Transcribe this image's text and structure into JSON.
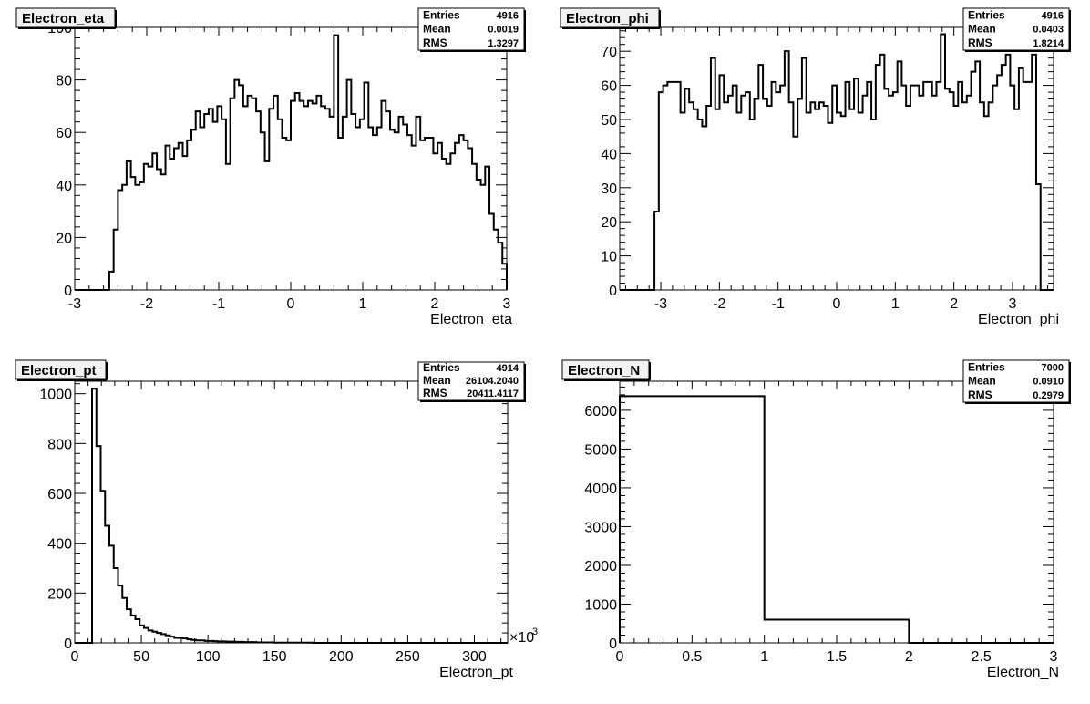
{
  "chart_data": [
    {
      "type": "histogram",
      "title": "Electron_eta",
      "xlabel": "Electron_eta",
      "ylabel": "",
      "xlim": [
        -3,
        3
      ],
      "ylim": [
        0,
        100
      ],
      "xticks": [
        -3,
        -2,
        -1,
        0,
        1,
        2,
        3
      ],
      "yticks": [
        0,
        20,
        40,
        60,
        80,
        100
      ],
      "xtick_labels": [
        "-3",
        "-2",
        "-1",
        "0",
        "1",
        "2",
        "3"
      ],
      "ytick_labels": [
        "0",
        "20",
        "40",
        "60",
        "80",
        "100"
      ],
      "bins": {
        "n": 100,
        "min": -3,
        "max": 3
      },
      "values": [
        0,
        0,
        0,
        0,
        0,
        0,
        0,
        0,
        7,
        23,
        38,
        40,
        49,
        43,
        40,
        41,
        48,
        47,
        52,
        46,
        44,
        55,
        50,
        54,
        56,
        51,
        57,
        61,
        68,
        62,
        67,
        69,
        64,
        70,
        65,
        48,
        73,
        80,
        78,
        70,
        74,
        73,
        68,
        60,
        49,
        69,
        74,
        65,
        58,
        57,
        72,
        75,
        72,
        70,
        72,
        71,
        74,
        70,
        69,
        66,
        97,
        58,
        66,
        80,
        67,
        62,
        65,
        79,
        62,
        59,
        62,
        72,
        68,
        61,
        60,
        66,
        63,
        59,
        55,
        66,
        57,
        58,
        58,
        52,
        56,
        50,
        48,
        52,
        56,
        59,
        57,
        54,
        48,
        42,
        40,
        47,
        29,
        23,
        18,
        10
      ],
      "stats": {
        "entries_label": "Entries",
        "entries": "4916",
        "mean_label": "Mean",
        "mean": "0.0019",
        "rms_label": "RMS",
        "rms": "1.3297"
      }
    },
    {
      "type": "histogram",
      "title": "Electron_phi",
      "xlabel": "Electron_phi",
      "ylabel": "",
      "xlim": [
        -3.7,
        3.7
      ],
      "ylim": [
        0,
        77
      ],
      "xticks": [
        -3,
        -2,
        -1,
        0,
        1,
        2,
        3
      ],
      "yticks": [
        0,
        10,
        20,
        30,
        40,
        50,
        60,
        70
      ],
      "xtick_labels": [
        "-3",
        "-2",
        "-1",
        "0",
        "1",
        "2",
        "3"
      ],
      "ytick_labels": [
        "0",
        "10",
        "20",
        "30",
        "40",
        "50",
        "60",
        "70"
      ],
      "bins": {
        "n": 100,
        "min": -3.7,
        "max": 3.7
      },
      "values": [
        0,
        0,
        0,
        0,
        0,
        0,
        0,
        0,
        23,
        58,
        60,
        61,
        61,
        61,
        52,
        59,
        55,
        53,
        50,
        48,
        54,
        68,
        53,
        63,
        55,
        57,
        60,
        52,
        57,
        58,
        50,
        56,
        66,
        56,
        54,
        61,
        58,
        60,
        70,
        55,
        45,
        56,
        68,
        52,
        55,
        53,
        55,
        54,
        49,
        60,
        52,
        51,
        61,
        53,
        62,
        52,
        57,
        61,
        50,
        66,
        69,
        59,
        57,
        58,
        67,
        60,
        54,
        60,
        60,
        57,
        61,
        61,
        57,
        61,
        75,
        59,
        58,
        54,
        61,
        55,
        57,
        64,
        67,
        55,
        51,
        55,
        60,
        63,
        66,
        69,
        60,
        53,
        65,
        61,
        61,
        69,
        31,
        0,
        0,
        0
      ],
      "stats": {
        "entries_label": "Entries",
        "entries": "4916",
        "mean_label": "Mean",
        "mean": "0.0403",
        "rms_label": "RMS",
        "rms": "1.8214"
      }
    },
    {
      "type": "histogram",
      "title": "Electron_pt",
      "xlabel": "Electron_pt",
      "ylabel": "",
      "x_multiplier_label": "×10",
      "x_multiplier_exponent": "3",
      "xlim": [
        0,
        325
      ],
      "ylim": [
        0,
        1050
      ],
      "xticks": [
        0,
        50,
        100,
        150,
        200,
        250,
        300
      ],
      "yticks": [
        0,
        200,
        400,
        600,
        800,
        1000
      ],
      "xtick_labels": [
        "0",
        "50",
        "100",
        "150",
        "200",
        "250",
        "300"
      ],
      "ytick_labels": [
        "0",
        "200",
        "400",
        "600",
        "800",
        "1000"
      ],
      "bins": {
        "n": 100,
        "min": 0,
        "max": 325
      },
      "values": [
        0,
        0,
        0,
        0,
        1020,
        790,
        610,
        470,
        390,
        300,
        230,
        180,
        135,
        110,
        95,
        70,
        60,
        50,
        45,
        40,
        35,
        30,
        25,
        20,
        20,
        18,
        14,
        12,
        10,
        10,
        8,
        8,
        7,
        6,
        6,
        5,
        5,
        4,
        4,
        3,
        3,
        3,
        2,
        2,
        2,
        2,
        1,
        1,
        1,
        1,
        1,
        1,
        1,
        1,
        1,
        0,
        0,
        0,
        0,
        0,
        0,
        0,
        0,
        0,
        0,
        0,
        0,
        0,
        0,
        0,
        0,
        0,
        0,
        0,
        0,
        0,
        0,
        0,
        0,
        0,
        0,
        0,
        0,
        0,
        0,
        0,
        0,
        0,
        0,
        0,
        0,
        0,
        0,
        0,
        0,
        0,
        0,
        0,
        0,
        0
      ],
      "stats": {
        "entries_label": "Entries",
        "entries": "4914",
        "mean_label": "Mean",
        "mean": "26104.2040",
        "rms_label": "RMS",
        "rms": "20411.4117"
      }
    },
    {
      "type": "histogram",
      "title": "Electron_N",
      "xlabel": "Electron_N",
      "ylabel": "",
      "xlim": [
        0,
        3
      ],
      "ylim": [
        0,
        6750
      ],
      "xticks": [
        0,
        0.5,
        1,
        1.5,
        2,
        2.5,
        3
      ],
      "yticks": [
        0,
        1000,
        2000,
        3000,
        4000,
        5000,
        6000
      ],
      "xtick_labels": [
        "0",
        "0.5",
        "1",
        "1.5",
        "2",
        "2.5",
        "3"
      ],
      "ytick_labels": [
        "0",
        "1000",
        "2000",
        "3000",
        "4000",
        "5000",
        "6000"
      ],
      "bins": {
        "n": 3,
        "min": 0,
        "max": 3
      },
      "values": [
        6365,
        600,
        0
      ],
      "stats": {
        "entries_label": "Entries",
        "entries": "7000",
        "mean_label": "Mean",
        "mean": "0.0910",
        "rms_label": "RMS",
        "rms": "0.2979"
      }
    }
  ]
}
